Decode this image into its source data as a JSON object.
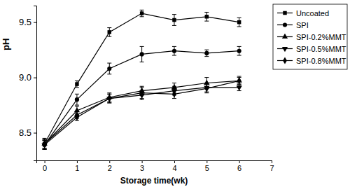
{
  "chart_data": {
    "type": "line",
    "x_label": "Storage time(wk)",
    "y_label": "pH",
    "x": [
      0,
      1,
      2,
      3,
      4,
      5,
      6
    ],
    "xlim": [
      -0.25,
      7
    ],
    "xticks": [
      0,
      1,
      2,
      3,
      4,
      5,
      6,
      7
    ],
    "ylim": [
      8.25,
      9.65
    ],
    "yticks": [
      {
        "value": 8.5,
        "label": "8.5"
      },
      {
        "value": 9.0,
        "label": "9.0"
      },
      {
        "value": 9.5,
        "label": "9.5"
      }
    ],
    "legend": "upper right",
    "grid": false,
    "series": [
      {
        "name": "Uncoated",
        "color": "#000000",
        "marker": "square",
        "line_style": "solid",
        "values": [
          8.4,
          8.94,
          9.41,
          9.58,
          9.52,
          9.55,
          9.5
        ],
        "errors": [
          0.05,
          0.03,
          0.04,
          0.03,
          0.05,
          0.04,
          0.04
        ]
      },
      {
        "name": "SPI",
        "color": "#000000",
        "marker": "circle",
        "line_style": "solid",
        "values": [
          8.39,
          8.8,
          9.08,
          9.21,
          9.24,
          9.22,
          9.24
        ],
        "errors": [
          0.04,
          0.05,
          0.05,
          0.07,
          0.04,
          0.03,
          0.04
        ]
      },
      {
        "name": "SPI-0.2%MMT",
        "color": "#000000",
        "marker": "triangle",
        "line_style": "solid",
        "values": [
          8.4,
          8.7,
          8.82,
          8.88,
          8.91,
          8.95,
          8.97
        ],
        "errors": [
          0.04,
          0.04,
          0.04,
          0.04,
          0.04,
          0.05,
          0.04
        ]
      },
      {
        "name": "SPI-0.5%MMT",
        "color": "#000000",
        "marker": "triangle-down",
        "line_style": "solid",
        "values": [
          8.39,
          8.64,
          8.81,
          8.84,
          8.88,
          8.91,
          8.91
        ],
        "errors": [
          0.04,
          0.03,
          0.04,
          0.04,
          0.04,
          0.04,
          0.03
        ]
      },
      {
        "name": "SPI-0.8%MMT",
        "color": "#000000",
        "marker": "diamond",
        "line_style": "solid",
        "values": [
          8.4,
          8.66,
          8.81,
          8.86,
          8.85,
          8.9,
          8.97
        ],
        "errors": [
          0.04,
          0.03,
          0.04,
          0.05,
          0.04,
          0.04,
          0.03
        ]
      }
    ]
  }
}
